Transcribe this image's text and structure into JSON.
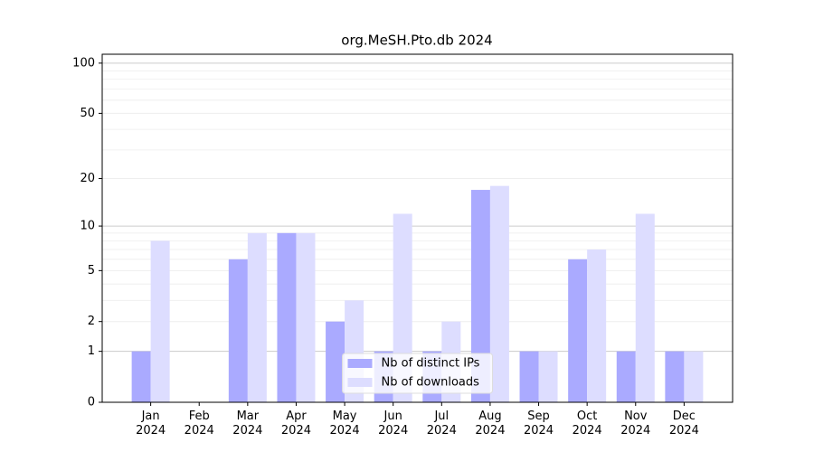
{
  "chart_data": {
    "type": "bar",
    "title": "org.MeSH.Pto.db 2024",
    "categories": [
      "Jan\n2024",
      "Feb\n2024",
      "Mar\n2024",
      "Apr\n2024",
      "May\n2024",
      "Jun\n2024",
      "Jul\n2024",
      "Aug\n2024",
      "Sep\n2024",
      "Oct\n2024",
      "Nov\n2024",
      "Dec\n2024"
    ],
    "series": [
      {
        "name": "Nb of distinct IPs",
        "color": "#aaaaff",
        "values": [
          1,
          0,
          6,
          9,
          2,
          1,
          1,
          17,
          1,
          6,
          1,
          1
        ]
      },
      {
        "name": "Nb of downloads",
        "color": "#ddddff",
        "values": [
          8,
          0,
          9,
          9,
          3,
          12,
          2,
          18,
          1,
          7,
          12,
          1
        ]
      }
    ],
    "y_scale": "log1p",
    "ylim": [
      0,
      113
    ],
    "yticks": [
      0,
      1,
      2,
      5,
      10,
      20,
      50,
      100
    ],
    "minor_yticks": [
      3,
      4,
      6,
      7,
      8,
      9,
      30,
      40,
      60,
      70,
      80,
      90
    ],
    "grid": true,
    "legend": "lower center"
  }
}
